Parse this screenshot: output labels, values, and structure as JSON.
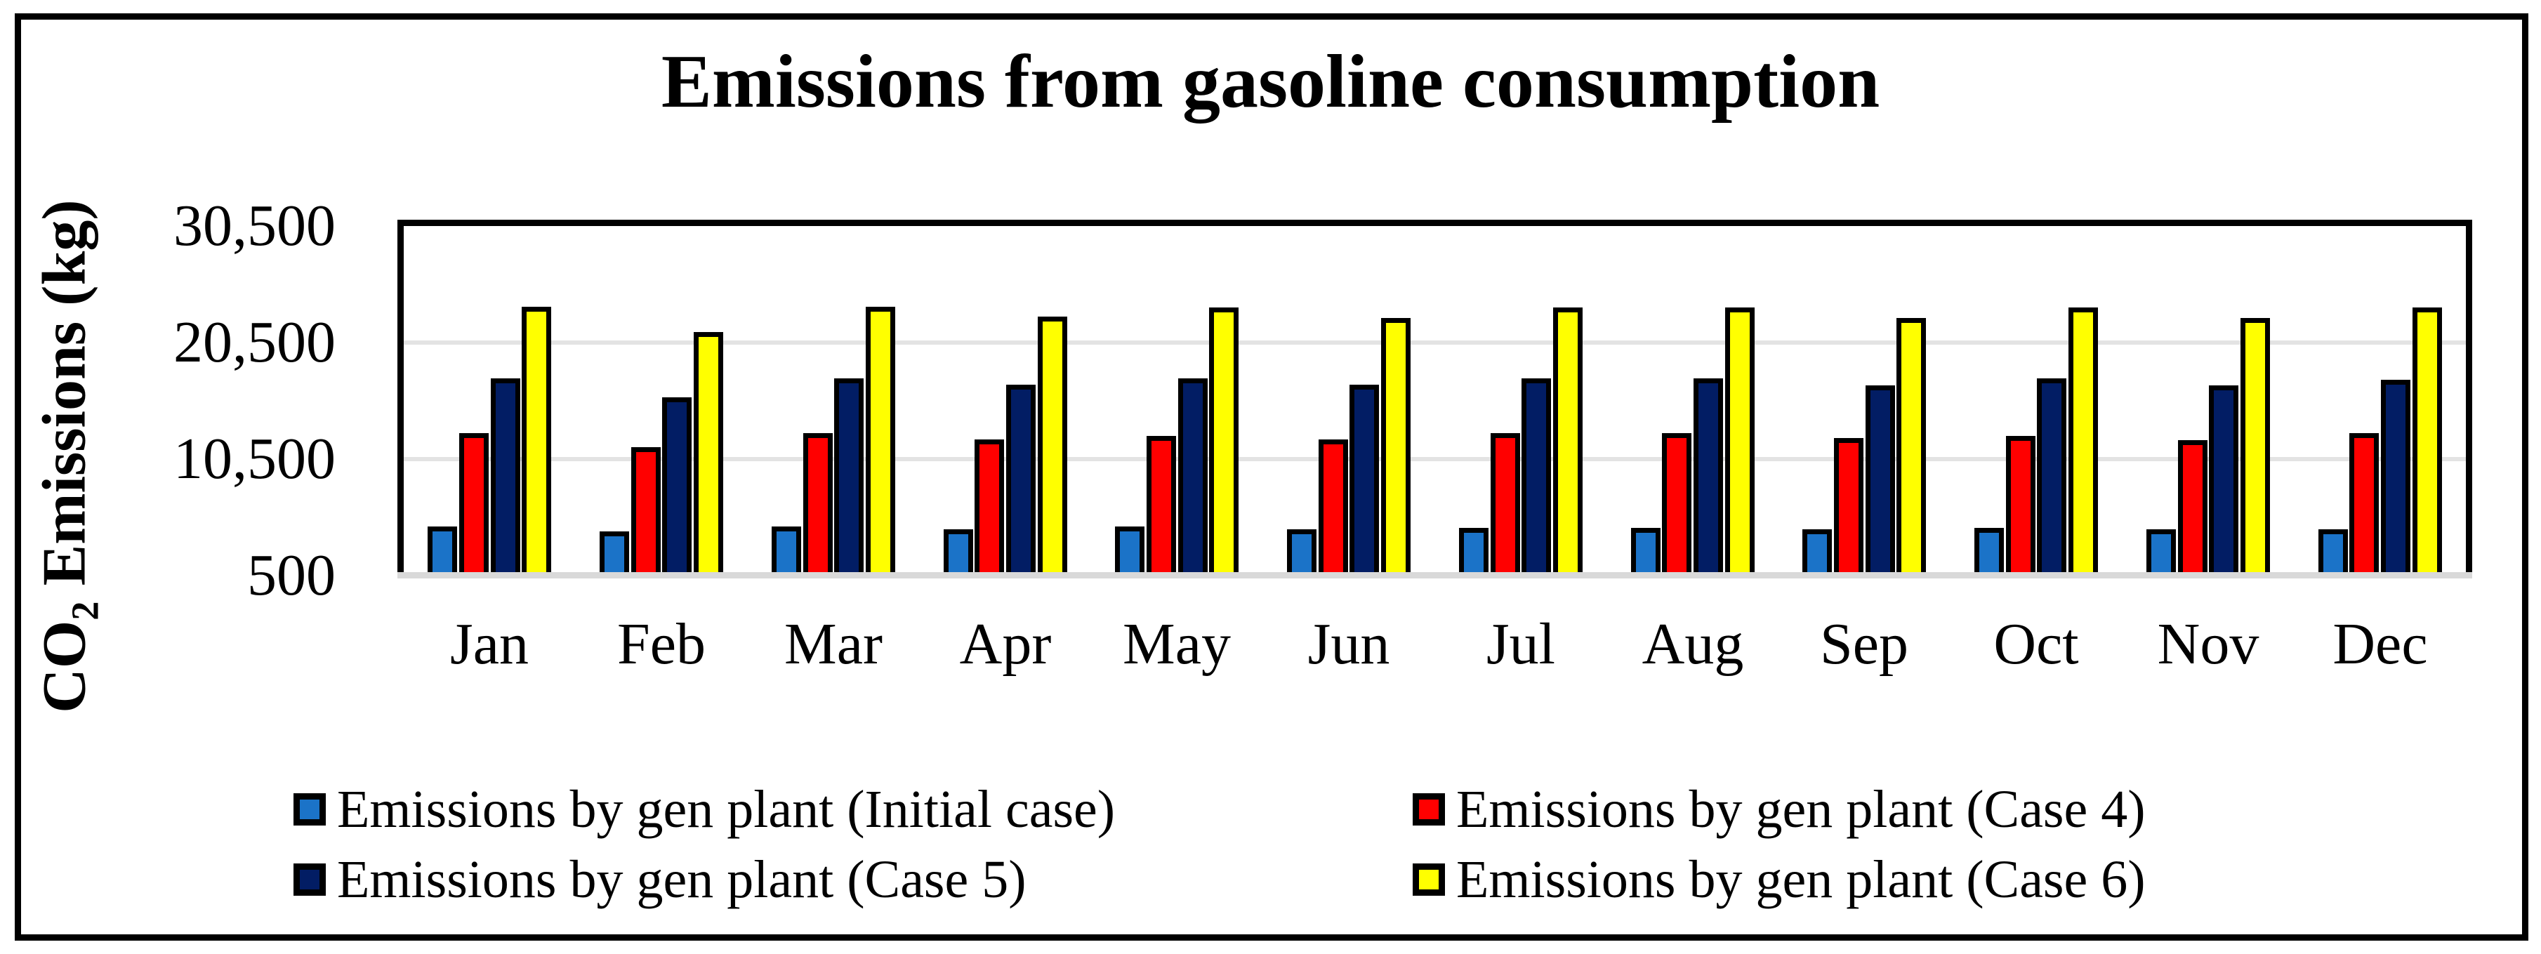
{
  "title": "Emissions from gasoline consumption",
  "y_axis": {
    "label_prefix": "CO",
    "label_sub": "2",
    "label_suffix": " Emissions (kg)",
    "ticks": [
      {
        "label": "30,500",
        "value": 30500
      },
      {
        "label": "20,500",
        "value": 20500
      },
      {
        "label": "10,500",
        "value": 10500
      },
      {
        "label": "500",
        "value": 500
      }
    ]
  },
  "colors": {
    "initial_case": "#1B73C8",
    "case_4": "#FF0000",
    "case_5": "#021D64",
    "case_6": "#FFFF00",
    "gridline": "#E3E3E3",
    "axis_line": "#D9D9D9",
    "outline": "#000000"
  },
  "chart_data": {
    "type": "bar",
    "title": "Emissions from gasoline consumption",
    "xlabel": "",
    "ylabel": "CO2 Emissions (kg)",
    "ylim": [
      500,
      30500
    ],
    "gridlines": [
      10500,
      20500
    ],
    "grid": true,
    "legend_position": "bottom",
    "categories": [
      "Jan",
      "Feb",
      "Mar",
      "Apr",
      "May",
      "Jun",
      "Jul",
      "Aug",
      "Sep",
      "Oct",
      "Nov",
      "Dec"
    ],
    "series": [
      {
        "name": "Emissions by gen plant (Initial case)",
        "color": "#1B73C8",
        "values": [
          4700,
          4300,
          4700,
          4500,
          4700,
          4500,
          4600,
          4600,
          4500,
          4600,
          4500,
          4500
        ]
      },
      {
        "name": "Emissions by gen plant (Case 4)",
        "color": "#FF0000",
        "values": [
          12700,
          11500,
          12700,
          12200,
          12500,
          12200,
          12700,
          12700,
          12300,
          12500,
          12100,
          12700
        ]
      },
      {
        "name": "Emissions by gen plant (Case 5)",
        "color": "#021D64",
        "values": [
          17400,
          15800,
          17400,
          16900,
          17400,
          16900,
          17400,
          17400,
          16800,
          17400,
          16800,
          17300
        ]
      },
      {
        "name": "Emissions by gen plant (Case 6)",
        "color": "#FFFF00",
        "values": [
          23600,
          21400,
          23600,
          22700,
          23500,
          22600,
          23500,
          23500,
          22600,
          23500,
          22600,
          23500
        ]
      }
    ]
  },
  "legend": {
    "items": [
      {
        "label": "Emissions by gen plant (Initial case)",
        "color": "#1B73C8"
      },
      {
        "label": "Emissions by gen plant (Case 4)",
        "color": "#FF0000"
      },
      {
        "label": "Emissions by gen plant (Case 5)",
        "color": "#021D64"
      },
      {
        "label": "Emissions by gen plant (Case 6)",
        "color": "#FFFF00"
      }
    ]
  }
}
